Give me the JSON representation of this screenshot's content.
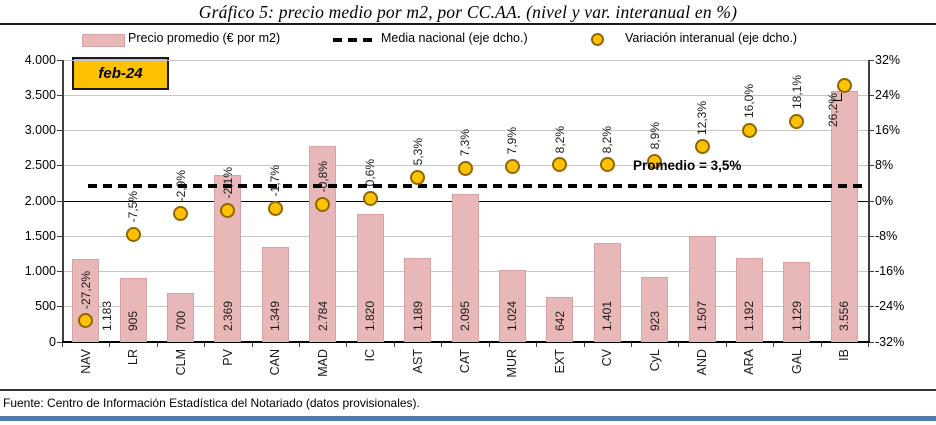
{
  "title": "Gráfico 5: precio medio por m2, por CC.AA. (nivel y var. interanual en %)",
  "date_label": "feb-24",
  "annotation_promedio": "Promedio = 3,5%",
  "source": "Fuente: Centro de Información Estadística del Notariado (datos provisionales).",
  "legend": [
    {
      "label": "Precio promedio (€ por m2)",
      "marker": "bar-swatch"
    },
    {
      "label": "Media nacional (eje dcho.)",
      "marker": "dashed-line"
    },
    {
      "label": "Variación interanual (eje dcho.)",
      "marker": "dot"
    }
  ],
  "colors": {
    "bar_fill": "#E8B7B7",
    "bar_border": "#D9A1A1",
    "dot_fill": "#FFC100",
    "dot_border": "#8F6701",
    "badge_fill": "#FFC000",
    "dashed_line": "#000000",
    "grid": "#C6C6C6",
    "axis": "#3F3F3F",
    "bottom_bar": "#4F79A7"
  },
  "chart_data": {
    "type": "bar",
    "title": "Gráfico 5: precio medio por m2, por CC.AA. (nivel y var. interanual en %)",
    "xlabel": "",
    "ylabel": "Precio promedio (€ por m2)",
    "ylabel_right": "Variación interanual (%)",
    "legend_position": "top",
    "grid": true,
    "categories": [
      "NAV",
      "LR",
      "CLM",
      "PV",
      "CAN",
      "MAD",
      "IC",
      "AST",
      "CAT",
      "MUR",
      "EXT",
      "CV",
      "CyL",
      "AND",
      "ARA",
      "GAL",
      "IB"
    ],
    "series": [
      {
        "name": "Precio promedio (€ por m2)",
        "type": "bar",
        "axis": "left",
        "values": [
          1183,
          905,
          700,
          2369,
          1349,
          2784,
          1820,
          1189,
          2095,
          1024,
          642,
          1401,
          923,
          1507,
          1192,
          1129,
          3556
        ],
        "labels": [
          "1.183",
          "905",
          "700",
          "2.369",
          "1.349",
          "2.784",
          "1.820",
          "1.189",
          "2.095",
          "1.024",
          "642",
          "1.401",
          "923",
          "1.507",
          "1.192",
          "1.129",
          "3.556"
        ]
      },
      {
        "name": "Variación interanual (eje dcho.)",
        "type": "scatter",
        "axis": "right",
        "values": [
          -27.2,
          -7.5,
          -2.9,
          -2.1,
          -1.7,
          -0.8,
          0.6,
          5.3,
          7.3,
          7.9,
          8.2,
          8.2,
          8.9,
          12.3,
          16.0,
          18.1,
          26.2
        ],
        "labels": [
          "-27,2%",
          "-7,5%",
          "-2,9%",
          "-2,1%",
          "-1,7%",
          "-0,8%",
          "0,6%",
          "5,3%",
          "7,3%",
          "7,9%",
          "8,2%",
          "8,2%",
          "8,9%",
          "12,3%",
          "16,0%",
          "18,1%",
          "26,2%"
        ]
      },
      {
        "name": "Media nacional (eje dcho.)",
        "type": "dashed-line",
        "axis": "right",
        "value": 3.5,
        "annotation": "Promedio = 3,5%"
      }
    ],
    "left_axis": {
      "min": 0,
      "max": 4000,
      "step": 500,
      "ticks": [
        {
          "v": 0,
          "label": "0"
        },
        {
          "v": 500,
          "label": "500"
        },
        {
          "v": 1000,
          "label": "1.000"
        },
        {
          "v": 1500,
          "label": "1.500"
        },
        {
          "v": 2000,
          "label": "2.000"
        },
        {
          "v": 2500,
          "label": "2.500"
        },
        {
          "v": 3000,
          "label": "3.000"
        },
        {
          "v": 3500,
          "label": "3.500"
        },
        {
          "v": 4000,
          "label": "4.000"
        }
      ]
    },
    "right_axis": {
      "min": -32,
      "max": 32,
      "step": 8,
      "ticks": [
        {
          "v": -32,
          "label": "-32%"
        },
        {
          "v": -24,
          "label": "-24%"
        },
        {
          "v": -16,
          "label": "-16%"
        },
        {
          "v": -8,
          "label": "-8%"
        },
        {
          "v": 0,
          "label": "0%"
        },
        {
          "v": 8,
          "label": "8%"
        },
        {
          "v": 16,
          "label": "16%"
        },
        {
          "v": 24,
          "label": "24%"
        },
        {
          "v": 32,
          "label": "32%"
        }
      ]
    }
  }
}
